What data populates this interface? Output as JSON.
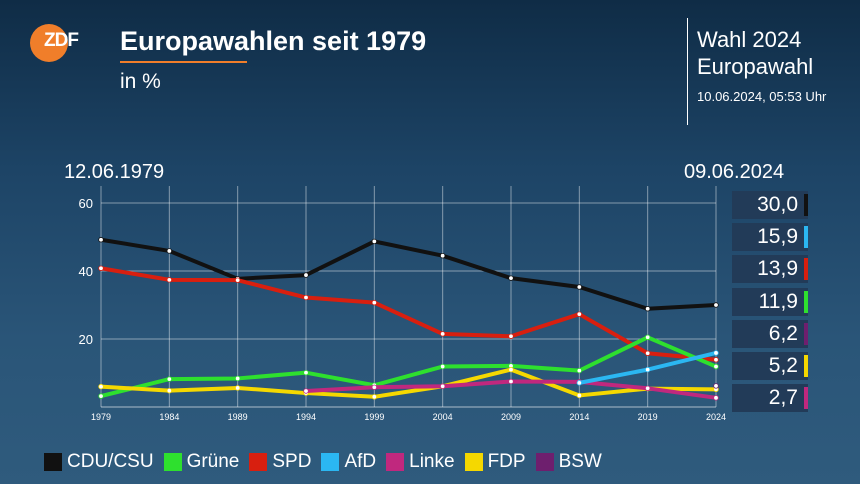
{
  "header": {
    "logo_text": "ZDF",
    "title": "Europawahlen seit 1979",
    "subtitle": "in %",
    "election_line1": "Wahl 2024",
    "election_line2": "Europawahl",
    "timestamp": "10.06.2024, 05:53 Uhr",
    "start_date": "12.06.1979",
    "end_date": "09.06.2024"
  },
  "colors": {
    "accent": "#f07e2a",
    "CDU/CSU": "#111111",
    "Grüne": "#2ee02e",
    "SPD": "#d81f0f",
    "AfD": "#2bb7f2",
    "Linke": "#c0287e",
    "FDP": "#f5d800",
    "BSW": "#6e1f6e"
  },
  "chart_data": {
    "type": "line",
    "title": "Europawahlen seit 1979",
    "ylabel": "in %",
    "x": [
      1979,
      1984,
      1989,
      1994,
      1999,
      2004,
      2009,
      2014,
      2019,
      2024
    ],
    "y_ticks": [
      20,
      40,
      60
    ],
    "ylim": [
      0,
      65
    ],
    "grid": true,
    "series": [
      {
        "name": "CDU/CSU",
        "color": "#111111",
        "values": [
          49.2,
          45.9,
          37.7,
          38.8,
          48.7,
          44.5,
          37.9,
          35.3,
          28.9,
          30.0
        ]
      },
      {
        "name": "SPD",
        "color": "#d81f0f",
        "values": [
          40.8,
          37.4,
          37.3,
          32.2,
          30.7,
          21.5,
          20.8,
          27.3,
          15.8,
          13.9
        ]
      },
      {
        "name": "Grüne",
        "color": "#2ee02e",
        "values": [
          3.2,
          8.2,
          8.4,
          10.1,
          6.4,
          11.9,
          12.1,
          10.7,
          20.5,
          11.9
        ]
      },
      {
        "name": "FDP",
        "color": "#f5d800",
        "values": [
          6.0,
          4.8,
          5.6,
          4.1,
          3.0,
          6.1,
          11.0,
          3.4,
          5.4,
          5.2
        ]
      },
      {
        "name": "Linke",
        "color": "#c0287e",
        "values": [
          null,
          null,
          null,
          4.7,
          5.8,
          6.1,
          7.5,
          7.4,
          5.5,
          2.7
        ]
      },
      {
        "name": "AfD",
        "color": "#2bb7f2",
        "values": [
          null,
          null,
          null,
          null,
          null,
          null,
          null,
          7.1,
          11.0,
          15.9
        ]
      },
      {
        "name": "BSW",
        "color": "#6e1f6e",
        "values": [
          null,
          null,
          null,
          null,
          null,
          null,
          null,
          null,
          null,
          6.2
        ]
      }
    ],
    "result_boxes": [
      {
        "party": "CDU/CSU",
        "value": "30,0",
        "color": "#111111"
      },
      {
        "party": "AfD",
        "value": "15,9",
        "color": "#2bb7f2"
      },
      {
        "party": "SPD",
        "value": "13,9",
        "color": "#d81f0f"
      },
      {
        "party": "Grüne",
        "value": "11,9",
        "color": "#2ee02e"
      },
      {
        "party": "BSW",
        "value": "6,2",
        "color": "#6e1f6e"
      },
      {
        "party": "FDP",
        "value": "5,2",
        "color": "#f5d800"
      },
      {
        "party": "Linke",
        "value": "2,7",
        "color": "#c0287e"
      }
    ],
    "legend": [
      "CDU/CSU",
      "Grüne",
      "SPD",
      "AfD",
      "Linke",
      "FDP",
      "BSW"
    ]
  }
}
